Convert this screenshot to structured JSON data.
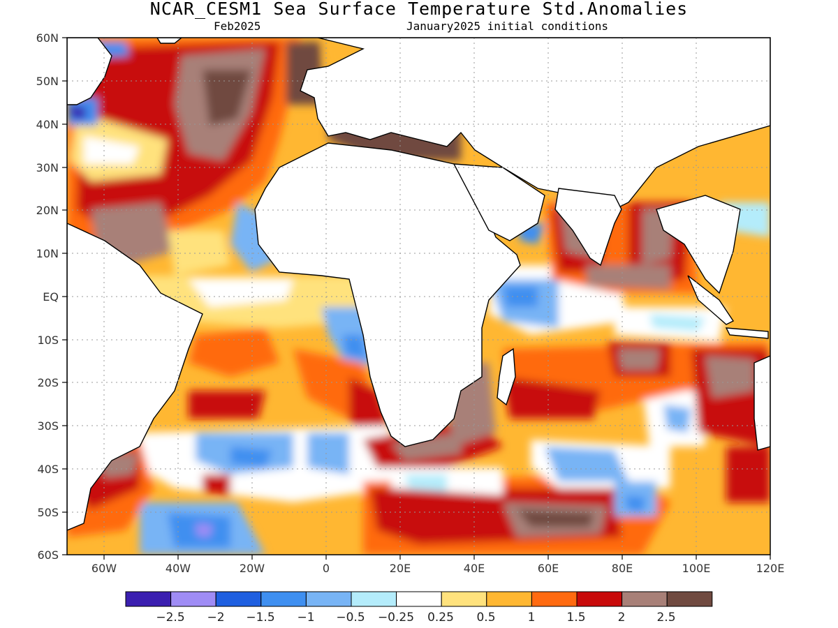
{
  "title": "NCAR_CESM1 Sea Surface Temperature Std.Anomalies",
  "subtitle_left": "Feb2025",
  "subtitle_right": "January2025 initial conditions",
  "map": {
    "lon_range": [
      -70,
      120
    ],
    "lat_range": [
      -60,
      60
    ],
    "lat_ticks": [
      "60N",
      "50N",
      "40N",
      "30N",
      "20N",
      "10N",
      "EQ",
      "10S",
      "20S",
      "30S",
      "40S",
      "50S",
      "60S"
    ],
    "lon_ticks": [
      "60W",
      "40W",
      "20W",
      "0",
      "20E",
      "40E",
      "60E",
      "80E",
      "100E",
      "120E"
    ],
    "grid": "dotted"
  },
  "colorbar": {
    "colors": [
      "#3b1fb0",
      "#9f8cf5",
      "#1f5fe0",
      "#3f8ff0",
      "#78b4f5",
      "#b4ecfb",
      "#ffffff",
      "#ffe27d",
      "#ffb732",
      "#ff6a10",
      "#c80a0a",
      "#a88078",
      "#704a40"
    ],
    "labels": [
      "−2.5",
      "−2",
      "−1.5",
      "−1",
      "−0.5",
      "−0.25",
      "0.25",
      "0.5",
      "1",
      "1.5",
      "2",
      "2.5"
    ]
  }
}
